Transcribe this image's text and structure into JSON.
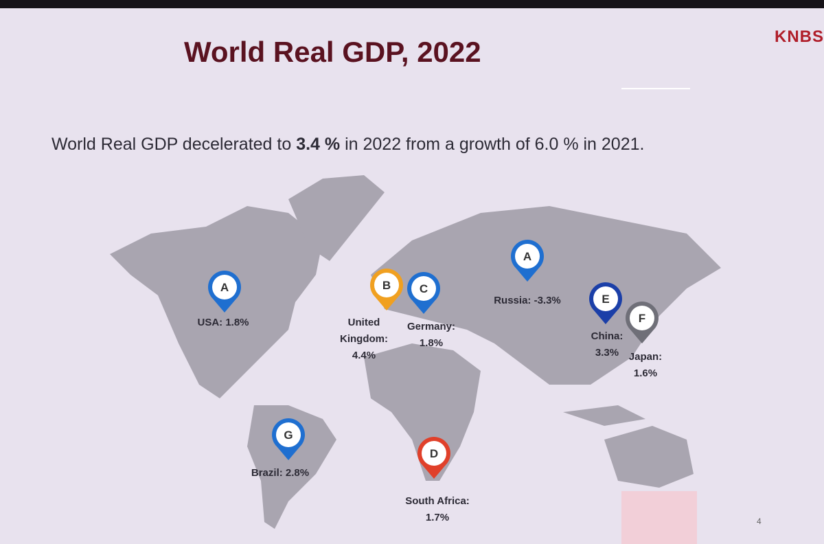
{
  "header": {
    "title": "World Real GDP, 2022",
    "logo": "KNBS"
  },
  "summary": {
    "parts": [
      "World Real GDP decelerated to ",
      "3.4 %",
      " in 2022 from a growth of 6.0 % in 2021."
    ]
  },
  "pins": [
    {
      "letter": "A",
      "label": "USA: 1.8%",
      "color": "#1f6fd0"
    },
    {
      "letter": "B",
      "label": "United\nKingdom:\n4.4%",
      "color": "#f0a020"
    },
    {
      "letter": "C",
      "label": "Germany:\n1.8%",
      "color": "#1f6fd0"
    },
    {
      "letter": "A",
      "label": "Russia: -3.3%",
      "color": "#1f6fd0"
    },
    {
      "letter": "E",
      "label": "China:\n3.3%",
      "color": "#1b3fa8"
    },
    {
      "letter": "F",
      "label": "Japan:\n1.6%",
      "color": "#6f6f78"
    },
    {
      "letter": "G",
      "label": "Brazil: 2.8%",
      "color": "#1f6fd0"
    },
    {
      "letter": "D",
      "label": "South Africa:\n1.7%",
      "color": "#e0402a"
    }
  ],
  "footer": {
    "page": "4"
  }
}
